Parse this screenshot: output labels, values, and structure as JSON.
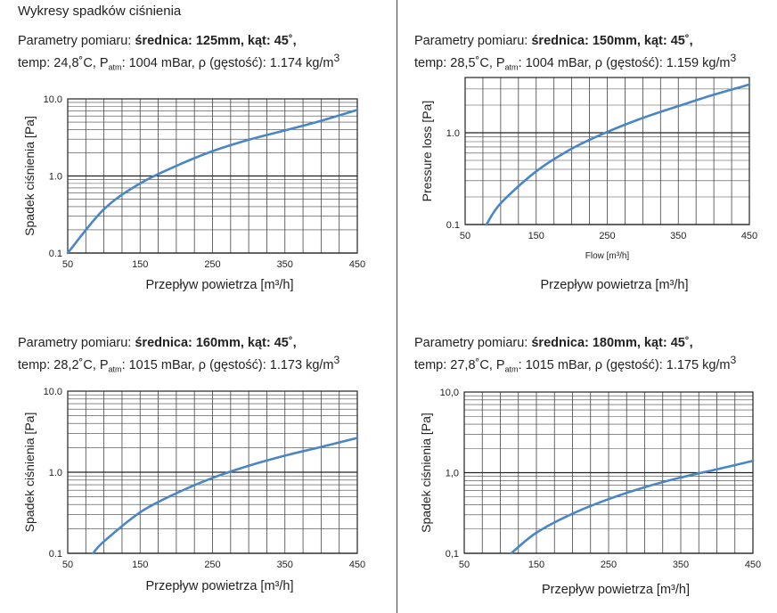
{
  "page_title": "Wykresy spadków ciśnienia",
  "colors": {
    "curve": "#4a86c5",
    "grid_major": "#222222",
    "grid_minor": "#444444"
  },
  "panels": [
    {
      "params_prefix": "Parametry pomiaru: ",
      "params_bold": "średnica: 125mm, kąt: 45˚,",
      "line2_temp": "temp: 24,8˚C, P",
      "line2_sub": "atm",
      "line2_rest": ": 1004 mBar, ρ (gęstość): 1.174 kg/m",
      "line2_sup": "3"
    },
    {
      "params_prefix": "Parametry pomiaru: ",
      "params_bold": "średnica: 150mm, kąt: 45˚,",
      "line2_temp": "temp: 28,5˚C, P",
      "line2_sub": "atm",
      "line2_rest": ": 1004 mBar, ρ (gęstość): 1.159 kg/m",
      "line2_sup": "3"
    },
    {
      "params_prefix": "Parametry pomiaru: ",
      "params_bold": "średnica: 160mm, kąt: 45˚,",
      "line2_temp": "temp: 28,2˚C, P",
      "line2_sub": "atm",
      "line2_rest": ": 1015 mBar, ρ (gęstość): 1.173 kg/m",
      "line2_sup": "3"
    },
    {
      "params_prefix": "Parametry pomiaru: ",
      "params_bold": "średnica: 180mm, kąt: 45˚,",
      "line2_temp": "temp: 27,8˚C, P",
      "line2_sub": "atm",
      "line2_rest": ": 1015 mBar, ρ (gęstość): 1.175 kg/m",
      "line2_sup": "3"
    }
  ],
  "chart_data": [
    {
      "type": "line",
      "yscale": "log",
      "xlim": [
        50,
        450
      ],
      "ylim": [
        0.1,
        10
      ],
      "x_ticks": [
        "50",
        "150",
        "250",
        "350",
        "450"
      ],
      "y_ticks": [
        "0.1",
        "1.0",
        "10.0"
      ],
      "ylabel": "Spadek ciśnienia [Pa]",
      "xlabel": "Przepływ powietrza [m³/h]",
      "grid": true,
      "series": [
        {
          "x": [
            50,
            100,
            150,
            200,
            250,
            300,
            350,
            400,
            450
          ],
          "y": [
            0.1,
            0.37,
            0.8,
            1.35,
            2.1,
            2.95,
            3.9,
            5.2,
            7.2
          ]
        }
      ]
    },
    {
      "type": "line",
      "yscale": "log",
      "xlim": [
        50,
        450
      ],
      "ylim": [
        0.1,
        4
      ],
      "x_ticks": [
        "50",
        "150",
        "250",
        "350",
        "450"
      ],
      "y_ticks": [
        "0.1",
        "1.0"
      ],
      "ylabel": "Pressure loss [Pa]",
      "xlabel_small": "Flow [m³/h]",
      "xlabel": "Przepływ powietrza [m³/h]",
      "grid": true,
      "series": [
        {
          "x": [
            80,
            100,
            150,
            200,
            250,
            300,
            350,
            400,
            450
          ],
          "y": [
            0.1,
            0.17,
            0.38,
            0.67,
            1.02,
            1.45,
            1.95,
            2.6,
            3.35
          ]
        }
      ]
    },
    {
      "type": "line",
      "yscale": "log",
      "xlim": [
        50,
        450
      ],
      "ylim": [
        0.1,
        10
      ],
      "x_ticks": [
        "50",
        "150",
        "250",
        "350",
        "450"
      ],
      "y_ticks": [
        "0.1",
        "1.0",
        "10.0"
      ],
      "ylabel": "Spadek ciśnienia [Pa]",
      "xlabel": "Przepływ powietrza [m³/h]",
      "grid": true,
      "series": [
        {
          "x": [
            85,
            100,
            150,
            200,
            250,
            300,
            350,
            400,
            450
          ],
          "y": [
            0.1,
            0.14,
            0.32,
            0.55,
            0.85,
            1.2,
            1.6,
            2.05,
            2.65
          ]
        }
      ]
    },
    {
      "type": "line",
      "yscale": "log",
      "xlim": [
        50,
        450
      ],
      "ylim": [
        0.1,
        10
      ],
      "x_ticks": [
        "50",
        "150",
        "250",
        "350",
        "450"
      ],
      "y_ticks": [
        "0,1",
        "1,0",
        "10,0"
      ],
      "ylabel": "Spadek ciśnienia [Pa]",
      "xlabel": "Przepływ powietrza [m³/h]",
      "grid": true,
      "series": [
        {
          "x": [
            115,
            150,
            200,
            250,
            300,
            350,
            400,
            450
          ],
          "y": [
            0.1,
            0.18,
            0.31,
            0.47,
            0.66,
            0.87,
            1.1,
            1.4
          ]
        }
      ]
    }
  ]
}
